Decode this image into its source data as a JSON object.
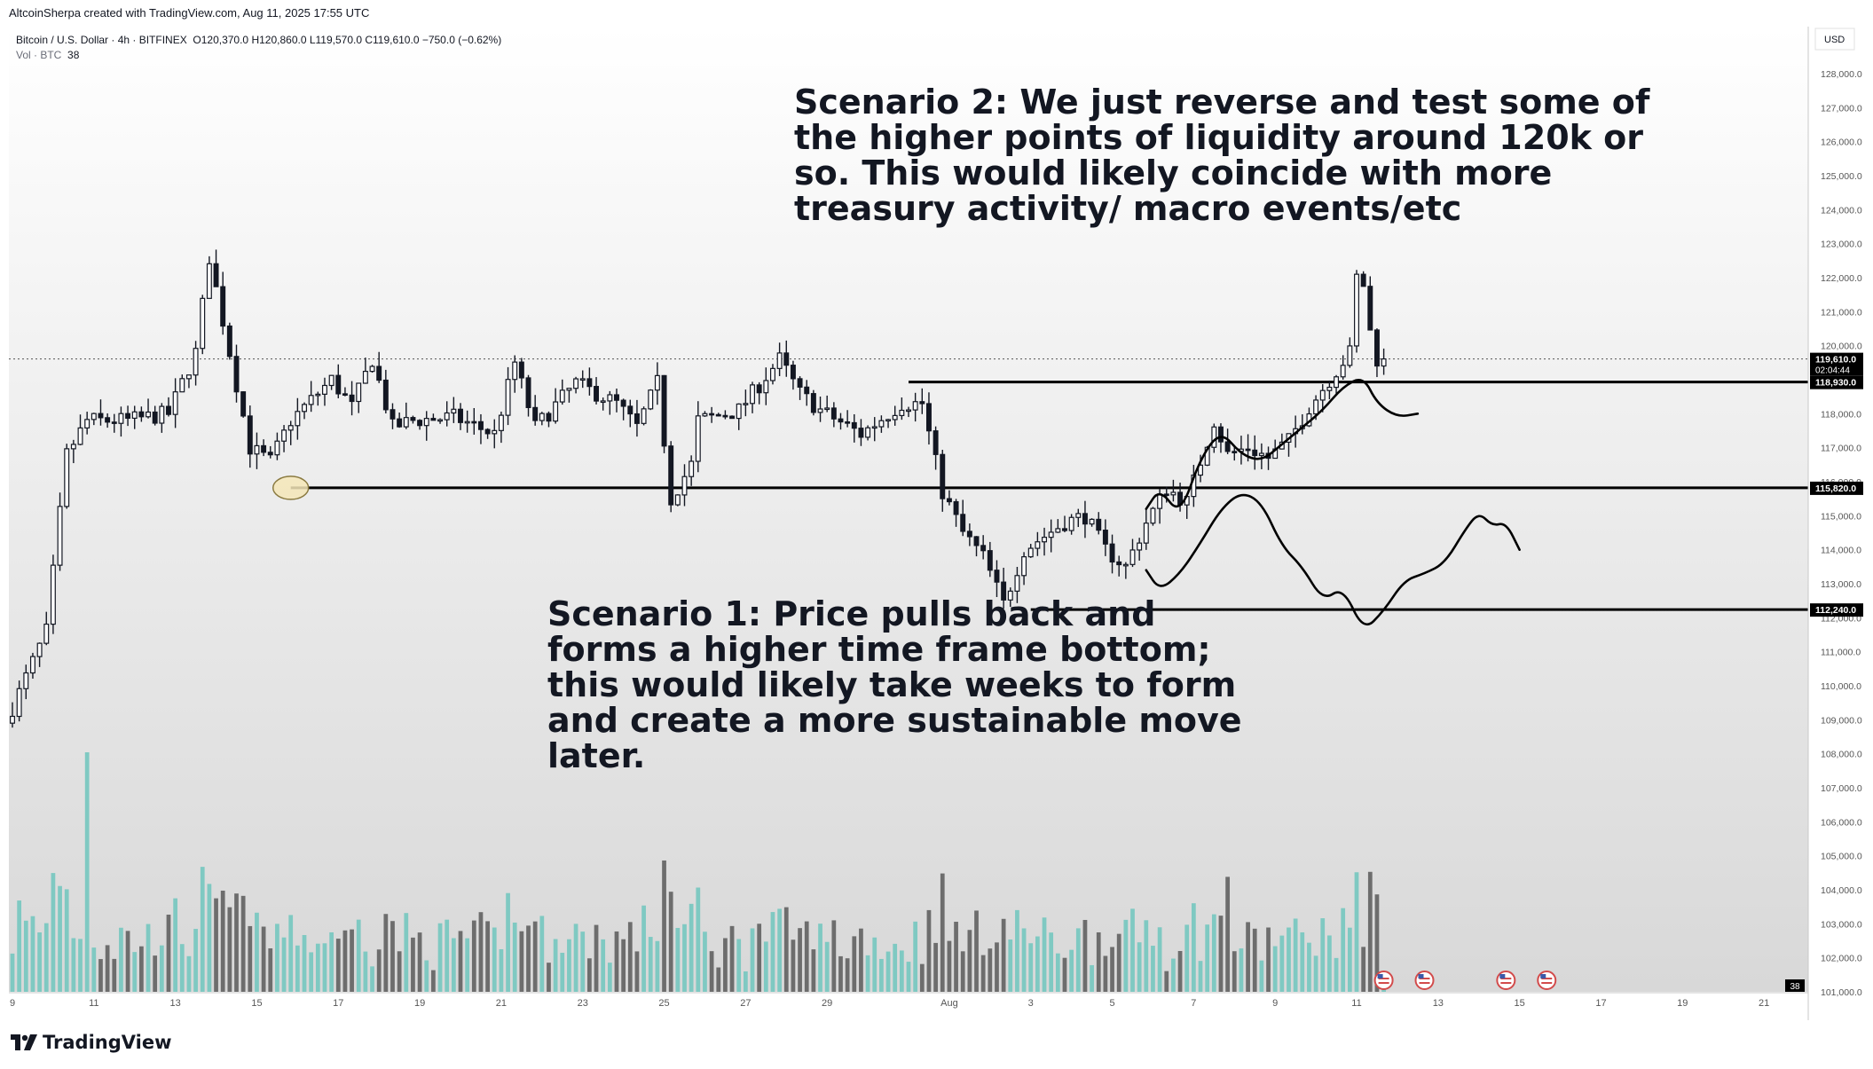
{
  "attribution": "AltcoinSherpa created with TradingView.com, Aug 11, 2025 17:55 UTC",
  "legend": {
    "symbol": "Bitcoin / U.S. Dollar · 4h · BITFINEX",
    "ohlc": "O120,370.0  H120,860.0  L119,570.0  C119,610.0  −750.0 (−0.62%)",
    "volume_label": "Vol · BTC",
    "volume_value": "38"
  },
  "logo_text": "TradingView",
  "annotations": {
    "scenario2": "Scenario 2: We just reverse and test some of the higher points of liquidity around 120k or so. This would likely coincide with more treasury activity/ macro events/etc",
    "scenario1": "Scenario 1: Price pulls back and forms a higher time frame bottom; this would likely take weeks to form and create a more sustainable move later."
  },
  "colors": {
    "candle": "#131722",
    "volume_up": "#7fc9c2",
    "volume_down": "#6d6d6d",
    "level_line": "#000000",
    "highlight_ellipse": "#f5e6b8"
  },
  "chart_data": {
    "type": "candlestick",
    "currency": "USD",
    "y_range": [
      101000,
      128600
    ],
    "y_ticks": [
      101000,
      102000,
      103000,
      104000,
      105000,
      106000,
      107000,
      108000,
      109000,
      110000,
      111000,
      112000,
      113000,
      114000,
      115000,
      116000,
      117000,
      118000,
      119000,
      120000,
      121000,
      122000,
      123000,
      124000,
      125000,
      126000,
      127000,
      128000
    ],
    "y_tick_labels": [
      "101,000.0",
      "102,000.0",
      "103,000.0",
      "104,000.0",
      "105,000.0",
      "106,000.0",
      "107,000.0",
      "108,000.0",
      "109,000.0",
      "110,000.0",
      "111,000.0",
      "112,000.0",
      "113,000.0",
      "114,000.0",
      "115,000.0",
      "116,000.0",
      "117,000.0",
      "118,000.0",
      "119,000.0",
      "120,000.0",
      "121,000.0",
      "122,000.0",
      "123,000.0",
      "124,000.0",
      "125,000.0",
      "126,000.0",
      "127,000.0",
      "128,000.0"
    ],
    "x_domain": [
      "2025-07-09",
      "2025-08-22"
    ],
    "x_ticks": [
      {
        "date": "2025-07-09",
        "label": "9"
      },
      {
        "date": "2025-07-11",
        "label": "11"
      },
      {
        "date": "2025-07-13",
        "label": "13"
      },
      {
        "date": "2025-07-15",
        "label": "15"
      },
      {
        "date": "2025-07-17",
        "label": "17"
      },
      {
        "date": "2025-07-19",
        "label": "19"
      },
      {
        "date": "2025-07-21",
        "label": "21"
      },
      {
        "date": "2025-07-23",
        "label": "23"
      },
      {
        "date": "2025-07-25",
        "label": "25"
      },
      {
        "date": "2025-07-27",
        "label": "27"
      },
      {
        "date": "2025-07-29",
        "label": "29"
      },
      {
        "date": "2025-08-01",
        "label": "Aug"
      },
      {
        "date": "2025-08-03",
        "label": "3"
      },
      {
        "date": "2025-08-05",
        "label": "5"
      },
      {
        "date": "2025-08-07",
        "label": "7"
      },
      {
        "date": "2025-08-09",
        "label": "9"
      },
      {
        "date": "2025-08-11",
        "label": "11"
      },
      {
        "date": "2025-08-13",
        "label": "13"
      },
      {
        "date": "2025-08-15",
        "label": "15"
      },
      {
        "date": "2025-08-17",
        "label": "17"
      },
      {
        "date": "2025-08-19",
        "label": "19"
      },
      {
        "date": "2025-08-21",
        "label": "21"
      }
    ],
    "price_anchors": [
      [
        "2025-07-09",
        108900
      ],
      [
        "2025-07-10",
        111600
      ],
      [
        "2025-07-10T12:00",
        116800
      ],
      [
        "2025-07-11",
        117800
      ],
      [
        "2025-07-12",
        117800
      ],
      [
        "2025-07-13",
        118000
      ],
      [
        "2025-07-13T16:00",
        119800
      ],
      [
        "2025-07-14",
        122600
      ],
      [
        "2025-07-14T12:00",
        119800
      ],
      [
        "2025-07-15",
        117000
      ],
      [
        "2025-07-15T12:00",
        116600
      ],
      [
        "2025-07-16",
        117800
      ],
      [
        "2025-07-17",
        119000
      ],
      [
        "2025-07-17T12:00",
        118200
      ],
      [
        "2025-07-18",
        119600
      ],
      [
        "2025-07-18T12:00",
        117600
      ],
      [
        "2025-07-19",
        117800
      ],
      [
        "2025-07-20",
        117900
      ],
      [
        "2025-07-21",
        117400
      ],
      [
        "2025-07-21T12:00",
        119500
      ],
      [
        "2025-07-22",
        117600
      ],
      [
        "2025-07-23",
        118900
      ],
      [
        "2025-07-24",
        118300
      ],
      [
        "2025-07-24T12:00",
        117600
      ],
      [
        "2025-07-25",
        118900
      ],
      [
        "2025-07-25T08:00",
        115500
      ],
      [
        "2025-07-25T20:00",
        116500
      ],
      [
        "2025-07-26",
        117800
      ],
      [
        "2025-07-27",
        118100
      ],
      [
        "2025-07-28",
        119600
      ],
      [
        "2025-07-28T12:00",
        118600
      ],
      [
        "2025-07-29",
        118100
      ],
      [
        "2025-07-30",
        117400
      ],
      [
        "2025-07-31",
        118300
      ],
      [
        "2025-07-31T12:00",
        118300
      ],
      [
        "2025-08-01",
        115700
      ],
      [
        "2025-08-01T12:00",
        114500
      ],
      [
        "2025-08-02",
        113800
      ],
      [
        "2025-08-02T12:00",
        112400
      ],
      [
        "2025-08-03",
        114000
      ],
      [
        "2025-08-04",
        114800
      ],
      [
        "2025-08-04T12:00",
        115000
      ],
      [
        "2025-08-05",
        114000
      ],
      [
        "2025-08-05T12:00",
        113500
      ],
      [
        "2025-08-06",
        114800
      ],
      [
        "2025-08-06T12:00",
        115800
      ],
      [
        "2025-08-07",
        115400
      ],
      [
        "2025-08-07T16:00",
        117800
      ],
      [
        "2025-08-08",
        116800
      ],
      [
        "2025-08-08T12:00",
        117000
      ],
      [
        "2025-08-09",
        116700
      ],
      [
        "2025-08-09T12:00",
        117200
      ],
      [
        "2025-08-10",
        118200
      ],
      [
        "2025-08-10T12:00",
        119000
      ],
      [
        "2025-08-11",
        119800
      ],
      [
        "2025-08-11T04:00",
        122000
      ],
      [
        "2025-08-11T08:00",
        121800
      ],
      [
        "2025-08-11T12:00",
        120400
      ],
      [
        "2025-08-11T16:00",
        119610
      ]
    ],
    "candle_seed": 7,
    "volume_peaks": [
      {
        "date": "2025-07-10T20:00",
        "value": 100
      },
      {
        "date": "2025-08-07T20:00",
        "value": 48
      }
    ],
    "current_volume": 38,
    "price_labels": [
      {
        "value": 119610,
        "text": "119,610.0",
        "sub": "02:04:44"
      },
      {
        "value": 118930,
        "text": "118,930.0"
      },
      {
        "value": 115820,
        "text": "115,820.0"
      },
      {
        "value": 112240,
        "text": "112,240.0"
      }
    ],
    "horizontal_levels": [
      {
        "value": 118930,
        "from": "2025-07-31"
      },
      {
        "value": 115820,
        "from": "2025-07-15T20:00"
      },
      {
        "value": 112240,
        "from": "2025-08-03"
      }
    ],
    "last_price": 119610,
    "highlight_ellipse": {
      "date": "2025-07-15T20:00",
      "value": 115820
    },
    "sketch_scenario2": [
      [
        "2025-08-05T20:00",
        115200
      ],
      [
        "2025-08-06T04:00",
        115800
      ],
      [
        "2025-08-06T16:00",
        115000
      ],
      [
        "2025-08-07T04:00",
        116700
      ],
      [
        "2025-08-07T16:00",
        117500
      ],
      [
        "2025-08-08T04:00",
        116800
      ],
      [
        "2025-08-08T16:00",
        116600
      ],
      [
        "2025-08-09T04:00",
        117100
      ],
      [
        "2025-08-09T16:00",
        117600
      ],
      [
        "2025-08-10T04:00",
        118100
      ],
      [
        "2025-08-10T16:00",
        118800
      ],
      [
        "2025-08-11T04:00",
        119100
      ],
      [
        "2025-08-11T12:00",
        118300
      ],
      [
        "2025-08-12",
        117900
      ],
      [
        "2025-08-12T12:00",
        118000
      ]
    ],
    "sketch_scenario1": [
      [
        "2025-08-05T20:00",
        113400
      ],
      [
        "2025-08-06T04:00",
        112800
      ],
      [
        "2025-08-06T16:00",
        113300
      ],
      [
        "2025-08-07T04:00",
        114200
      ],
      [
        "2025-08-07T16:00",
        115200
      ],
      [
        "2025-08-08T04:00",
        115700
      ],
      [
        "2025-08-08T16:00",
        115400
      ],
      [
        "2025-08-09T04:00",
        114100
      ],
      [
        "2025-08-09T16:00",
        113500
      ],
      [
        "2025-08-10T04:00",
        112500
      ],
      [
        "2025-08-10T16:00",
        112900
      ],
      [
        "2025-08-11T04:00",
        111600
      ],
      [
        "2025-08-11T16:00",
        112200
      ],
      [
        "2025-08-12T04:00",
        113100
      ],
      [
        "2025-08-12T16:00",
        113300
      ],
      [
        "2025-08-13T04:00",
        113600
      ],
      [
        "2025-08-13T16:00",
        114600
      ],
      [
        "2025-08-14",
        115100
      ],
      [
        "2025-08-14T08:00",
        114700
      ],
      [
        "2025-08-14T16:00",
        114800
      ],
      [
        "2025-08-15",
        114000
      ]
    ],
    "event_markers": [
      "2025-08-11T16:00",
      "2025-08-12T16:00",
      "2025-08-14T16:00",
      "2025-08-15T16:00"
    ]
  }
}
